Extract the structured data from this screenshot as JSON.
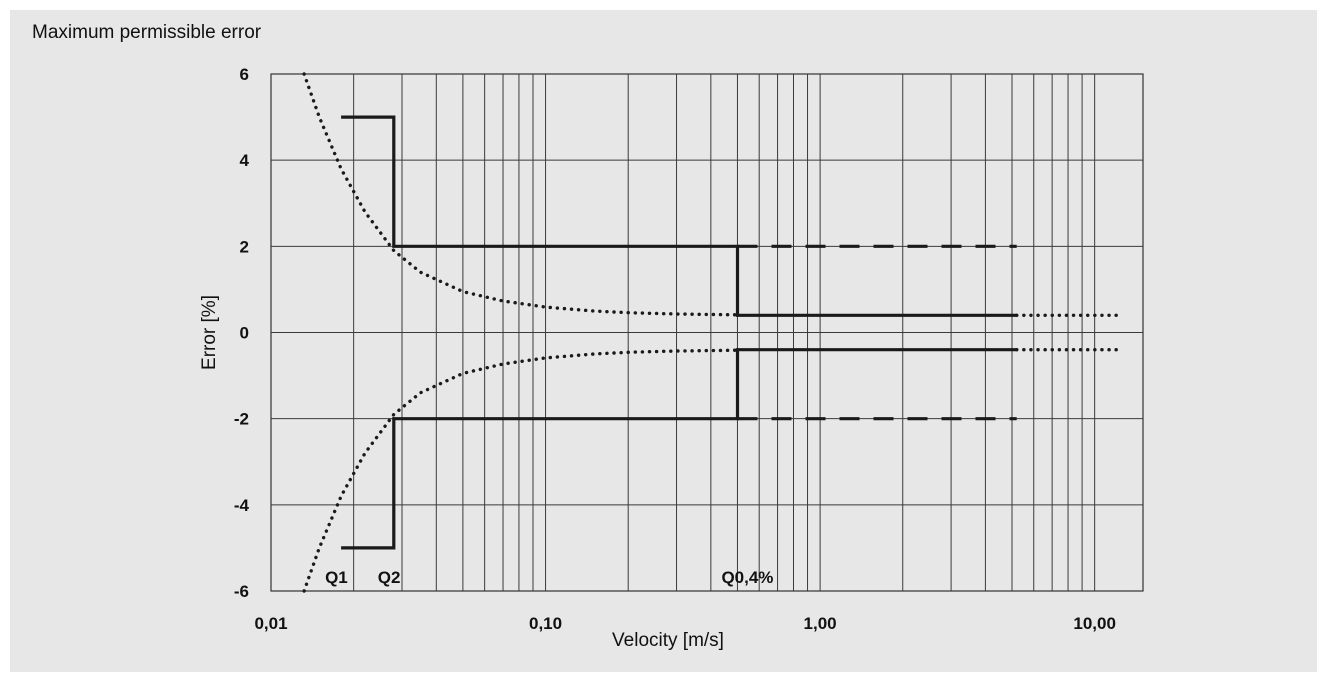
{
  "page": {
    "title": "Maximum permissible error"
  },
  "chart_data": {
    "type": "line",
    "title": "Maximum permissible error",
    "xlabel": "Velocity [m/s]",
    "ylabel": "Error [%]",
    "x_scale": "log",
    "xlim": [
      0.01,
      15
    ],
    "ylim": [
      -6,
      6
    ],
    "grid": true,
    "x_ticks": [
      0.01,
      0.1,
      1,
      10
    ],
    "x_tick_labels": [
      "0,01",
      "0,10",
      "1,00",
      "10,00"
    ],
    "y_ticks": [
      -6,
      -4,
      -2,
      0,
      2,
      4,
      6
    ],
    "y_tick_labels": [
      "-6",
      "-4",
      "-2",
      "0",
      "2",
      "4",
      "6"
    ],
    "annotations": [
      {
        "text": "Q1",
        "x": 0.018,
        "y": -6
      },
      {
        "text": "Q2",
        "x": 0.028,
        "y": -6
      },
      {
        "text": "Q0,4%",
        "x": 0.5,
        "y": -6
      }
    ],
    "series": [
      {
        "style": "solid",
        "x": [
          0.018,
          0.028,
          0.028,
          0.5,
          0.5,
          5.2
        ],
        "y": [
          5,
          5,
          2,
          2,
          0.4,
          0.4
        ]
      },
      {
        "style": "solid",
        "x": [
          0.018,
          0.028,
          0.028,
          0.5,
          0.5,
          5.2
        ],
        "y": [
          -5,
          -5,
          -2,
          -2,
          -0.4,
          -0.4
        ]
      },
      {
        "style": "dashed",
        "x": [
          0.5,
          5.2
        ],
        "y": [
          2,
          2
        ]
      },
      {
        "style": "dashed",
        "x": [
          0.5,
          5.2
        ],
        "y": [
          -2,
          -2
        ]
      },
      {
        "style": "dotted",
        "x": [
          5.2,
          12
        ],
        "y": [
          0.4,
          0.4
        ]
      },
      {
        "style": "dotted",
        "x": [
          5.2,
          12
        ],
        "y": [
          -0.4,
          -0.4
        ]
      },
      {
        "style": "dotted",
        "x": [
          0.0132,
          0.015,
          0.018,
          0.022,
          0.028,
          0.035,
          0.05,
          0.07,
          0.1,
          0.15,
          0.2,
          0.3,
          0.5
        ],
        "y": [
          6,
          5.0,
          3.8,
          2.8,
          1.9,
          1.4,
          0.95,
          0.73,
          0.59,
          0.5,
          0.46,
          0.43,
          0.41
        ]
      },
      {
        "style": "dotted",
        "x": [
          0.0132,
          0.015,
          0.018,
          0.022,
          0.028,
          0.035,
          0.05,
          0.07,
          0.1,
          0.15,
          0.2,
          0.3,
          0.5
        ],
        "y": [
          -6,
          -5.0,
          -3.8,
          -2.8,
          -1.9,
          -1.4,
          -0.95,
          -0.73,
          -0.59,
          -0.5,
          -0.46,
          -0.43,
          -0.41
        ]
      }
    ]
  }
}
